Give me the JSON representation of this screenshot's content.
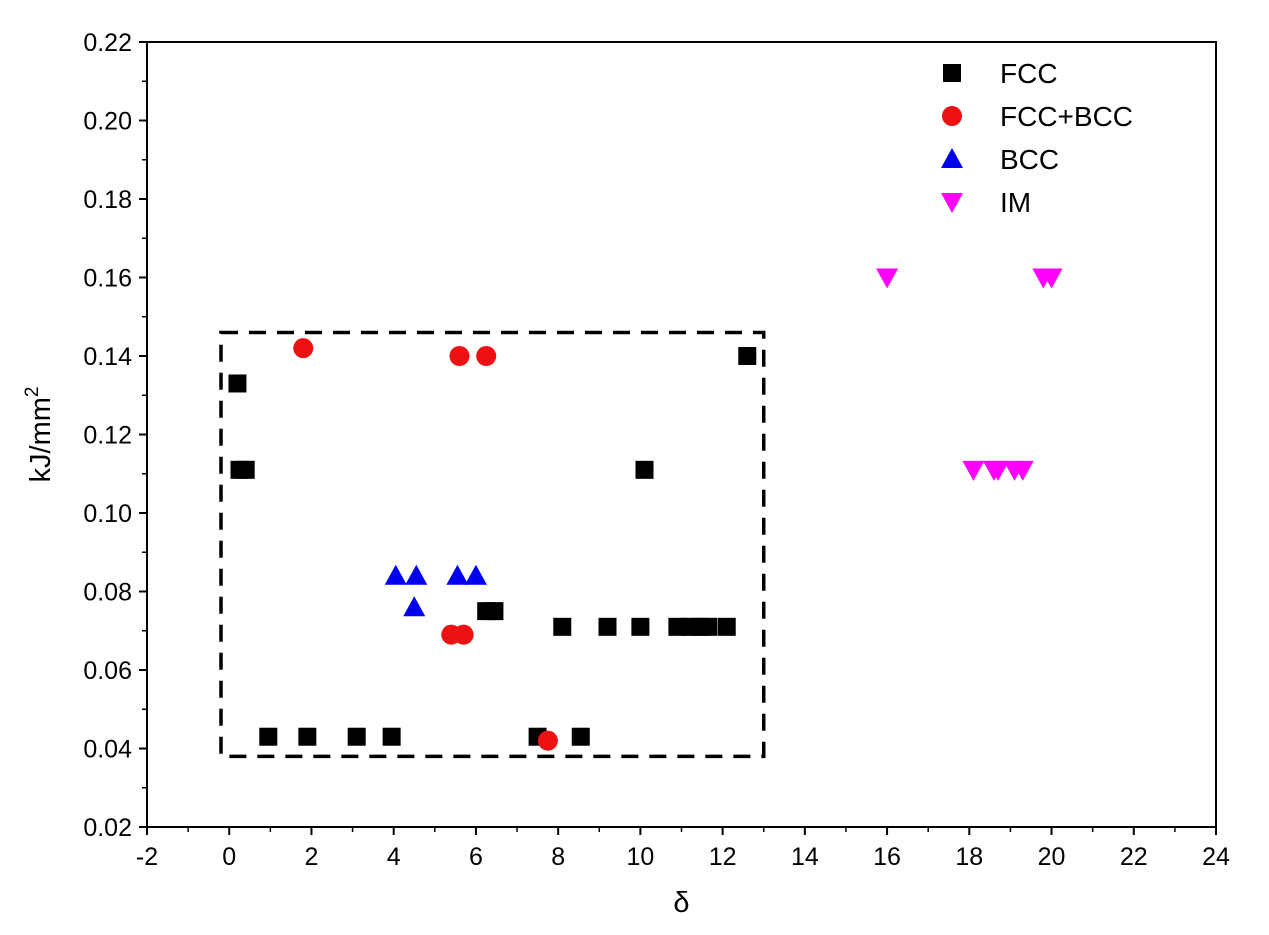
{
  "chart_data": {
    "type": "scatter",
    "title": "",
    "xlabel": "δ",
    "ylabel": "kJ/mm",
    "ylabel_superscript": "2",
    "xlim": [
      -2,
      24
    ],
    "ylim": [
      0.02,
      0.22
    ],
    "x_ticks": [
      -2,
      0,
      2,
      4,
      6,
      8,
      10,
      12,
      14,
      16,
      18,
      20,
      22,
      24
    ],
    "x_tick_labels": [
      "-2",
      "0",
      "2",
      "4",
      "6",
      "8",
      "10",
      "12",
      "14",
      "16",
      "18",
      "20",
      "22",
      "24"
    ],
    "y_ticks": [
      0.02,
      0.04,
      0.06,
      0.08,
      0.1,
      0.12,
      0.14,
      0.16,
      0.18,
      0.2,
      0.22
    ],
    "y_tick_labels": [
      "0.02",
      "0.04",
      "0.06",
      "0.08",
      "0.10",
      "0.12",
      "0.14",
      "0.16",
      "0.18",
      "0.20",
      "0.22"
    ],
    "grid": false,
    "legend_position": "top-right",
    "series": [
      {
        "name": "FCC",
        "marker": "square",
        "color": "#000000",
        "points": [
          [
            0.2,
            0.133
          ],
          [
            0.25,
            0.111
          ],
          [
            0.4,
            0.111
          ],
          [
            0.95,
            0.043
          ],
          [
            1.9,
            0.043
          ],
          [
            3.1,
            0.043
          ],
          [
            3.95,
            0.043
          ],
          [
            6.25,
            0.075
          ],
          [
            6.45,
            0.075
          ],
          [
            7.5,
            0.043
          ],
          [
            8.55,
            0.043
          ],
          [
            8.1,
            0.071
          ],
          [
            9.2,
            0.071
          ],
          [
            10.0,
            0.071
          ],
          [
            10.9,
            0.071
          ],
          [
            11.2,
            0.071
          ],
          [
            11.45,
            0.071
          ],
          [
            11.65,
            0.071
          ],
          [
            12.1,
            0.071
          ],
          [
            10.1,
            0.111
          ],
          [
            12.6,
            0.14
          ]
        ]
      },
      {
        "name": "FCC+BCC",
        "marker": "circle",
        "color": "#ee1111",
        "points": [
          [
            1.8,
            0.142
          ],
          [
            5.6,
            0.14
          ],
          [
            6.25,
            0.14
          ],
          [
            5.4,
            0.069
          ],
          [
            5.7,
            0.069
          ],
          [
            7.75,
            0.042
          ]
        ]
      },
      {
        "name": "BCC",
        "marker": "triangle-up",
        "color": "#0000ee",
        "points": [
          [
            4.05,
            0.084
          ],
          [
            4.55,
            0.084
          ],
          [
            5.55,
            0.084
          ],
          [
            6.0,
            0.084
          ],
          [
            4.5,
            0.076
          ]
        ]
      },
      {
        "name": "IM",
        "marker": "triangle-down",
        "color": "#ff00ff",
        "points": [
          [
            16.0,
            0.16
          ],
          [
            19.8,
            0.16
          ],
          [
            20.0,
            0.16
          ],
          [
            18.1,
            0.111
          ],
          [
            18.6,
            0.111
          ],
          [
            18.7,
            0.111
          ],
          [
            19.1,
            0.111
          ],
          [
            19.3,
            0.111
          ]
        ]
      }
    ],
    "annotations": [
      {
        "type": "dashed-rectangle",
        "x_range": [
          -0.2,
          13.0
        ],
        "y_range": [
          0.038,
          0.146
        ]
      }
    ]
  }
}
